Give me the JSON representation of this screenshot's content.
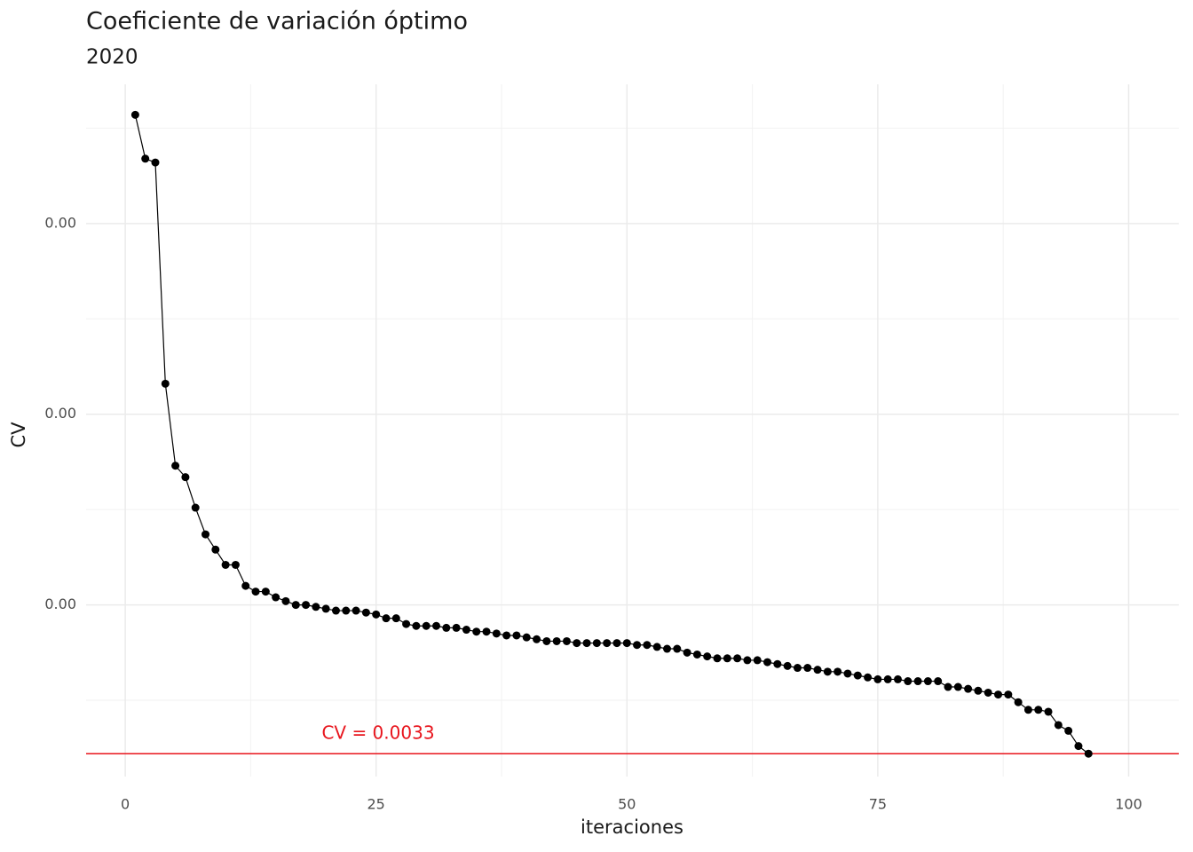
{
  "chart_data": {
    "type": "line",
    "title": "Coeficiente de variación óptimo",
    "subtitle": "2020",
    "x_label": "iteraciones",
    "y_label": "CV",
    "x": [
      1,
      2,
      3,
      4,
      5,
      6,
      7,
      8,
      9,
      10,
      11,
      12,
      13,
      14,
      15,
      16,
      17,
      18,
      19,
      20,
      21,
      22,
      23,
      24,
      25,
      26,
      27,
      28,
      29,
      30,
      31,
      32,
      33,
      34,
      35,
      36,
      37,
      38,
      39,
      40,
      41,
      42,
      43,
      44,
      45,
      46,
      47,
      48,
      49,
      50,
      51,
      52,
      53,
      54,
      55,
      56,
      57,
      58,
      59,
      60,
      61,
      62,
      63,
      64,
      65,
      66,
      67,
      68,
      69,
      70,
      71,
      72,
      73,
      74,
      75,
      76,
      77,
      78,
      79,
      80,
      81,
      82,
      83,
      84,
      85,
      86,
      87,
      88,
      89,
      90,
      91,
      92,
      93,
      94,
      95,
      96
    ],
    "series": [
      {
        "name": "CV",
        "color": "#000000",
        "values": [
          0.003657,
          0.003634,
          0.003632,
          0.003516,
          0.003473,
          0.003467,
          0.003451,
          0.003437,
          0.003429,
          0.003421,
          0.003421,
          0.00341,
          0.003407,
          0.003407,
          0.003404,
          0.003402,
          0.0034,
          0.0034,
          0.003399,
          0.003398,
          0.003397,
          0.003397,
          0.003397,
          0.003396,
          0.003395,
          0.003393,
          0.003393,
          0.00339,
          0.003389,
          0.003389,
          0.003389,
          0.003388,
          0.003388,
          0.003387,
          0.003386,
          0.003386,
          0.003385,
          0.003384,
          0.003384,
          0.003383,
          0.003382,
          0.003381,
          0.003381,
          0.003381,
          0.00338,
          0.00338,
          0.00338,
          0.00338,
          0.00338,
          0.00338,
          0.003379,
          0.003379,
          0.003378,
          0.003377,
          0.003377,
          0.003375,
          0.003374,
          0.003373,
          0.003372,
          0.003372,
          0.003372,
          0.003371,
          0.003371,
          0.00337,
          0.003369,
          0.003368,
          0.003367,
          0.003367,
          0.003366,
          0.003365,
          0.003365,
          0.003364,
          0.003363,
          0.003362,
          0.003361,
          0.003361,
          0.003361,
          0.00336,
          0.00336,
          0.00336,
          0.00336,
          0.003357,
          0.003357,
          0.003356,
          0.003355,
          0.003354,
          0.003353,
          0.003353,
          0.003349,
          0.003345,
          0.003345,
          0.003344,
          0.003337,
          0.003334,
          0.003326,
          0.003322
        ]
      }
    ],
    "hline": {
      "value": 0.003322,
      "label": "CV = 0.0033",
      "color": "#e8141c"
    },
    "xlim": [
      -3.9,
      105
    ],
    "ylim": [
      0.00331,
      0.003673
    ],
    "xticks": [
      0,
      25,
      50,
      75,
      100
    ],
    "yticks": [
      {
        "value": 0.0034,
        "label": "0.00"
      },
      {
        "value": 0.0035,
        "label": "0.00"
      },
      {
        "value": 0.0036,
        "label": "0.00"
      }
    ],
    "minor_xticks": [
      12.5,
      37.5,
      62.5,
      87.5
    ],
    "minor_yticks": [
      0.00335,
      0.00345,
      0.00355,
      0.00365
    ],
    "grid": true
  }
}
